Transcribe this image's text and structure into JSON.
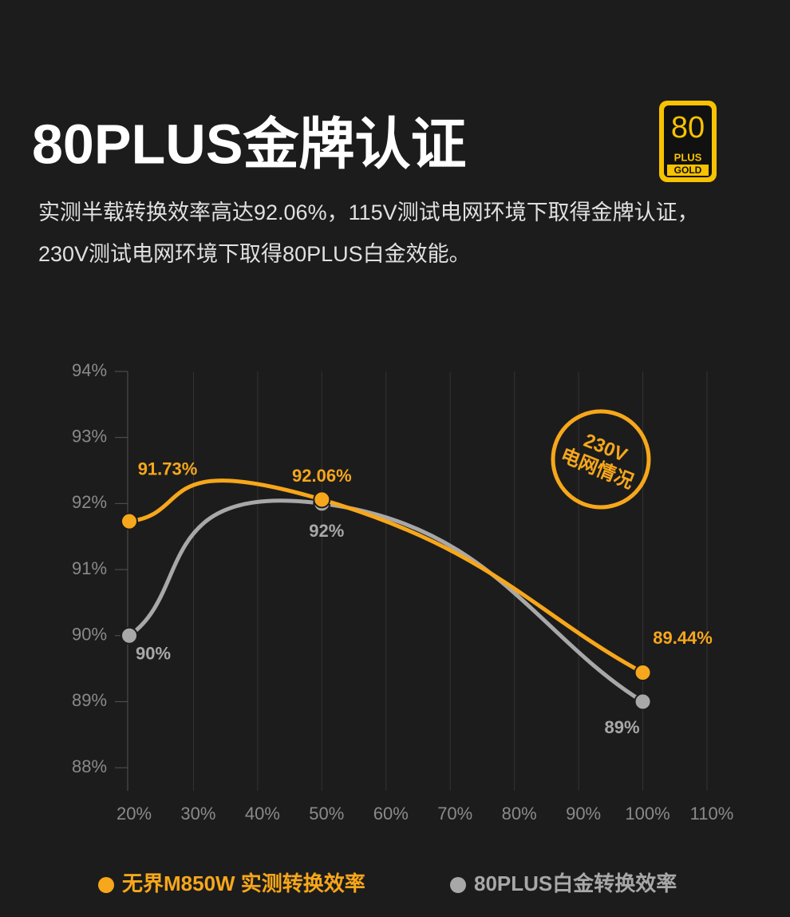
{
  "header": {
    "title": "80PLUS金牌认证",
    "description": [
      "实测半载转换效率高达92.06%，115V测试电网环境下取得金牌认证，",
      "230V测试电网环境下取得80PLUS白金效能。"
    ]
  },
  "badge": {
    "number": "80",
    "line1": "PLUS",
    "line2": "GOLD"
  },
  "chart_data": {
    "type": "line",
    "x": [
      20,
      50,
      100
    ],
    "xlim": [
      20,
      110
    ],
    "xticks": [
      {
        "value": 20,
        "label": "20%"
      },
      {
        "value": 30,
        "label": "30%"
      },
      {
        "value": 40,
        "label": "40%"
      },
      {
        "value": 50,
        "label": "50%"
      },
      {
        "value": 60,
        "label": "60%"
      },
      {
        "value": 70,
        "label": "70%"
      },
      {
        "value": 80,
        "label": "80%"
      },
      {
        "value": 90,
        "label": "90%"
      },
      {
        "value": 100,
        "label": "100%"
      },
      {
        "value": 110,
        "label": "110%"
      }
    ],
    "ylim": [
      87.65,
      94
    ],
    "yticks": [
      {
        "value": 88,
        "label": "88%"
      },
      {
        "value": 89,
        "label": "89%"
      },
      {
        "value": 90,
        "label": "90%"
      },
      {
        "value": 91,
        "label": "91%"
      },
      {
        "value": 92,
        "label": "92%"
      },
      {
        "value": 93,
        "label": "93%"
      },
      {
        "value": 94,
        "label": "94%"
      }
    ],
    "grid": true,
    "series": [
      {
        "name": "无界M850W 实测转换效率",
        "color": "#f7a71b",
        "values": [
          91.73,
          92.06,
          89.44
        ],
        "value_labels": [
          "91.73%",
          "92.06%",
          "89.44%"
        ]
      },
      {
        "name": "80PLUS白金转换效率",
        "color": "#a8a8a8",
        "values": [
          90,
          92,
          89
        ],
        "value_labels": [
          "90%",
          "92%",
          "89%"
        ]
      }
    ],
    "annotation": [
      "230V",
      "电网情况"
    ]
  }
}
